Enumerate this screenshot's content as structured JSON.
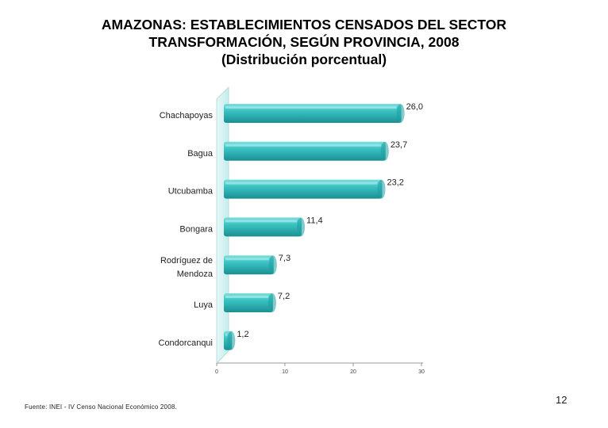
{
  "slide": {
    "title_lines": [
      "AMAZONAS: ESTABLECIMIENTOS CENSADOS DEL SECTOR",
      "TRANSFORMACIÓN, SEGÚN PROVINCIA, 2008",
      "(Distribución porcentual)"
    ],
    "source": "Fuente: INEI - IV Censo Nacional Económico 2008.",
    "page_number": "12"
  },
  "chart_data": {
    "type": "bar",
    "orientation": "horizontal",
    "title": "AMAZONAS: ESTABLECIMIENTOS CENSADOS DEL SECTOR TRANSFORMACIÓN, SEGÚN PROVINCIA, 2008 (Distribución porcentual)",
    "categories": [
      [
        "Chachapoyas"
      ],
      [
        "Bagua"
      ],
      [
        "Utcubamba"
      ],
      [
        "Bongara"
      ],
      [
        "Rodríguez de",
        "Mendoza"
      ],
      [
        "Luya"
      ],
      [
        "Condorcanqui"
      ]
    ],
    "values": [
      26.0,
      23.7,
      23.2,
      11.4,
      7.3,
      7.2,
      1.2
    ],
    "value_labels": [
      "26,0",
      "23,7",
      "23,2",
      "11,4",
      "7,3",
      "7,2",
      "1,2"
    ],
    "xlim": [
      0,
      30
    ],
    "ticks": [
      0,
      10,
      20,
      30
    ],
    "tick_labels": [
      "0",
      "10",
      "20",
      "30"
    ],
    "xlabel": "",
    "ylabel": "",
    "bar_color": "#2fb8b8",
    "grid": false,
    "legend": "none"
  }
}
